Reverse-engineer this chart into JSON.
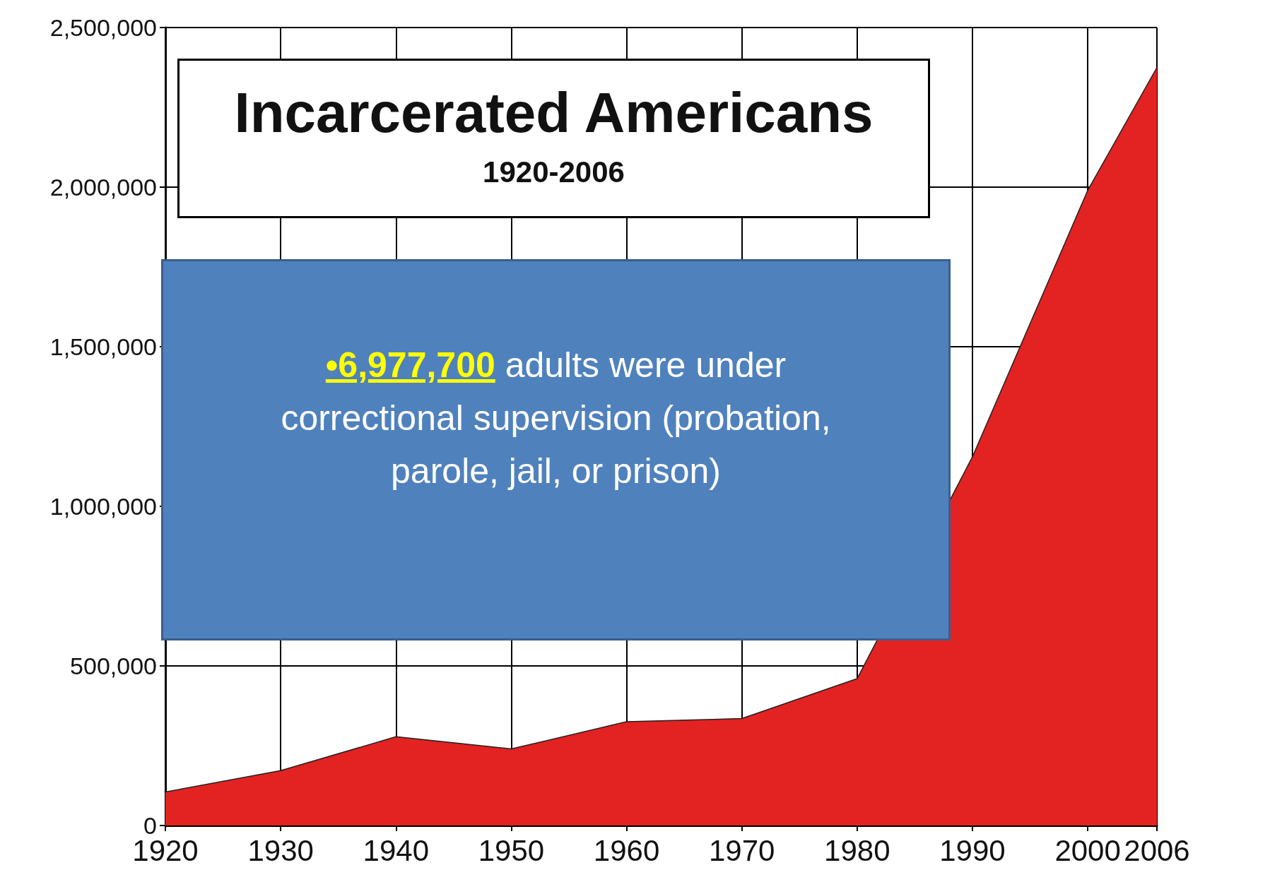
{
  "chart_data": {
    "type": "area",
    "title": "Incarcerated Americans",
    "subtitle": "1920-2006",
    "x": [
      1920,
      1930,
      1940,
      1950,
      1960,
      1970,
      1980,
      1990,
      2000,
      2006
    ],
    "series": [
      {
        "color": "#e32222",
        "values": [
          105000,
          172000,
          278000,
          240000,
          325000,
          335000,
          460000,
          1155000,
          1990000,
          2375000
        ]
      }
    ],
    "xlim": [
      1920,
      2006
    ],
    "xticks": [
      1920,
      1930,
      1940,
      1950,
      1960,
      1970,
      1980,
      1990,
      2000,
      2006
    ],
    "ylim": [
      0,
      2500000
    ],
    "yticks": [
      0,
      {
        "value": 500000,
        "label": "500,000"
      },
      {
        "value": 1000000,
        "label": "1,000,000"
      },
      {
        "value": 1500000,
        "label": "1,500,000"
      },
      {
        "value": 2000000,
        "label": "2,000,000"
      },
      {
        "value": 2500000,
        "label": "2,500,000"
      }
    ],
    "grid": true,
    "marker": "none",
    "line_style": "solid",
    "annotations": [
      "•6,977,700 adults were under correctional supervision (probation, parole, jail, or prison)"
    ]
  }
}
